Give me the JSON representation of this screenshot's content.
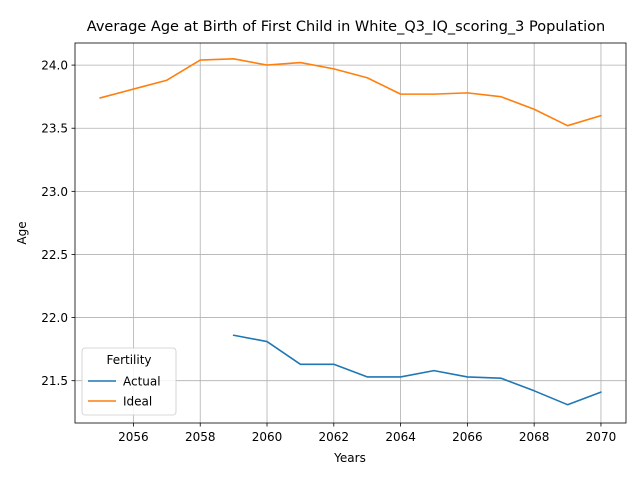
{
  "chart_data": {
    "type": "line",
    "title": "Average Age at Birth of First Child in White_Q3_IQ_scoring_3 Population",
    "xlabel": "Years",
    "ylabel": "Age",
    "xlim": [
      2054.25,
      2070.75
    ],
    "ylim": [
      21.165,
      24.175
    ],
    "x_ticks": [
      2056,
      2058,
      2060,
      2062,
      2064,
      2066,
      2068,
      2070
    ],
    "y_ticks": [
      21.5,
      22.0,
      22.5,
      23.0,
      23.5,
      24.0
    ],
    "x_tick_labels": [
      "2056",
      "2058",
      "2060",
      "2062",
      "2064",
      "2066",
      "2068",
      "2070"
    ],
    "y_tick_labels": [
      "21.5",
      "22.0",
      "22.5",
      "23.0",
      "23.5",
      "24.0"
    ],
    "grid": true,
    "legend": {
      "title": "Fertility",
      "placement": "lower-left"
    },
    "series": [
      {
        "name": "Actual",
        "color": "#1f77b4",
        "x": [
          2059,
          2060,
          2061,
          2062,
          2063,
          2064,
          2065,
          2066,
          2067,
          2068,
          2069,
          2070
        ],
        "y": [
          21.86,
          21.81,
          21.63,
          21.63,
          21.53,
          21.53,
          21.58,
          21.53,
          21.52,
          21.42,
          21.31,
          21.41
        ]
      },
      {
        "name": "Ideal",
        "color": "#ff7f0e",
        "x": [
          2055,
          2056,
          2057,
          2058,
          2059,
          2060,
          2061,
          2062,
          2063,
          2064,
          2065,
          2066,
          2067,
          2068,
          2069,
          2070
        ],
        "y": [
          23.74,
          23.81,
          23.88,
          24.04,
          24.05,
          24.0,
          24.02,
          23.97,
          23.9,
          23.77,
          23.77,
          23.78,
          23.75,
          23.65,
          23.52,
          23.6
        ]
      }
    ]
  }
}
